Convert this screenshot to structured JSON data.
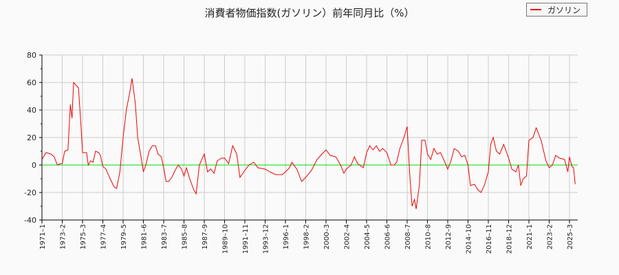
{
  "title": "消費者物価指数(ガソリン）前年同月比（%）",
  "legend": {
    "label": "ガソリン",
    "color": "#ee0000"
  },
  "colors": {
    "series": "#ee0000",
    "zero_line": "#00dd00",
    "grid": "#cccccc",
    "axis": "#000000",
    "background": "#fafafa"
  },
  "chart_data": {
    "type": "line",
    "title": "消費者物価指数(ガソリン）前年同月比（%）",
    "xlabel": "",
    "ylabel": "",
    "ylim": [
      -40,
      80
    ],
    "yticks": [
      80,
      60,
      40,
      20,
      0,
      -20,
      -40
    ],
    "grid": true,
    "legend_position": "top-right",
    "x_tick_labels": [
      "1971-1",
      "1973-2",
      "1975-3",
      "1977-4",
      "1979-5",
      "1981-6",
      "1983-7",
      "1985-8",
      "1987-9",
      "1989-10",
      "1991-11",
      "1993-12",
      "1996-1",
      "1998-2",
      "2000-3",
      "2002-4",
      "2004-5",
      "2006-6",
      "2008-7",
      "2010-8",
      "2012-9",
      "2014-10",
      "2016-11",
      "2018-12",
      "2021-1",
      "2023-2",
      "2025-3"
    ],
    "series": [
      {
        "name": "ガソリン",
        "points": [
          [
            "1971-1",
            4
          ],
          [
            "1971-6",
            9
          ],
          [
            "1971-12",
            8
          ],
          [
            "1972-4",
            6
          ],
          [
            "1972-8",
            0
          ],
          [
            "1972-12",
            1
          ],
          [
            "1973-2",
            1
          ],
          [
            "1973-5",
            10
          ],
          [
            "1973-9",
            11
          ],
          [
            "1973-12",
            44
          ],
          [
            "1974-2",
            34
          ],
          [
            "1974-4",
            60
          ],
          [
            "1974-10",
            56
          ],
          [
            "1975-1",
            30
          ],
          [
            "1975-3",
            9
          ],
          [
            "1975-8",
            9
          ],
          [
            "1975-10",
            0
          ],
          [
            "1976-1",
            3
          ],
          [
            "1976-4",
            2
          ],
          [
            "1976-7",
            10
          ],
          [
            "1976-11",
            9
          ],
          [
            "1977-1",
            7
          ],
          [
            "1977-4",
            -1
          ],
          [
            "1977-8",
            -3
          ],
          [
            "1978-1",
            -10
          ],
          [
            "1978-6",
            -16
          ],
          [
            "1978-9",
            -17
          ],
          [
            "1979-1",
            -5
          ],
          [
            "1979-5",
            20
          ],
          [
            "1979-9",
            40
          ],
          [
            "1980-1",
            52
          ],
          [
            "1980-4",
            63
          ],
          [
            "1980-8",
            45
          ],
          [
            "1980-11",
            20
          ],
          [
            "1981-3",
            6
          ],
          [
            "1981-6",
            -5
          ],
          [
            "1981-9",
            0
          ],
          [
            "1982-1",
            10
          ],
          [
            "1982-5",
            14
          ],
          [
            "1982-9",
            14
          ],
          [
            "1982-12",
            8
          ],
          [
            "1983-4",
            6
          ],
          [
            "1983-7",
            -2
          ],
          [
            "1983-10",
            -12
          ],
          [
            "1984-1",
            -12
          ],
          [
            "1984-5",
            -9
          ],
          [
            "1984-9",
            -4
          ],
          [
            "1985-1",
            0
          ],
          [
            "1985-5",
            -3
          ],
          [
            "1985-8",
            -8
          ],
          [
            "1985-11",
            -2
          ],
          [
            "1986-3",
            -10
          ],
          [
            "1986-8",
            -18
          ],
          [
            "1986-11",
            -21
          ],
          [
            "1987-3",
            0
          ],
          [
            "1987-9",
            8
          ],
          [
            "1988-1",
            -5
          ],
          [
            "1988-5",
            -3
          ],
          [
            "1988-9",
            -6
          ],
          [
            "1989-1",
            3
          ],
          [
            "1989-6",
            5
          ],
          [
            "1989-10",
            5
          ],
          [
            "1990-3",
            1
          ],
          [
            "1990-8",
            14
          ],
          [
            "1991-1",
            8
          ],
          [
            "1991-5",
            -9
          ],
          [
            "1991-11",
            -4
          ],
          [
            "1992-4",
            0
          ],
          [
            "1992-10",
            2
          ],
          [
            "1993-3",
            -2
          ],
          [
            "1993-12",
            -3
          ],
          [
            "1994-6",
            -5
          ],
          [
            "1995-1",
            -7
          ],
          [
            "1995-9",
            -7
          ],
          [
            "1996-1",
            -5
          ],
          [
            "1996-6",
            -2
          ],
          [
            "1996-9",
            2
          ],
          [
            "1997-3",
            -3
          ],
          [
            "1997-9",
            -12
          ],
          [
            "1998-2",
            -9
          ],
          [
            "1998-9",
            -4
          ],
          [
            "1999-4",
            4
          ],
          [
            "1999-10",
            8
          ],
          [
            "2000-3",
            11
          ],
          [
            "2000-8",
            7
          ],
          [
            "2001-3",
            6
          ],
          [
            "2001-9",
            0
          ],
          [
            "2002-1",
            -6
          ],
          [
            "2002-4",
            -3
          ],
          [
            "2002-10",
            0
          ],
          [
            "2003-2",
            6
          ],
          [
            "2003-6",
            1
          ],
          [
            "2004-1",
            -2
          ],
          [
            "2004-5",
            9
          ],
          [
            "2004-9",
            14
          ],
          [
            "2005-1",
            11
          ],
          [
            "2005-5",
            14
          ],
          [
            "2005-9",
            10
          ],
          [
            "2006-1",
            12
          ],
          [
            "2006-6",
            9
          ],
          [
            "2006-11",
            0
          ],
          [
            "2007-3",
            0
          ],
          [
            "2007-6",
            2
          ],
          [
            "2007-10",
            12
          ],
          [
            "2008-3",
            20
          ],
          [
            "2008-7",
            28
          ],
          [
            "2008-10",
            -5
          ],
          [
            "2009-1",
            -30
          ],
          [
            "2009-4",
            -25
          ],
          [
            "2009-6",
            -32
          ],
          [
            "2009-10",
            -15
          ],
          [
            "2010-1",
            18
          ],
          [
            "2010-5",
            18
          ],
          [
            "2010-8",
            8
          ],
          [
            "2010-12",
            4
          ],
          [
            "2011-4",
            12
          ],
          [
            "2011-8",
            8
          ],
          [
            "2011-12",
            9
          ],
          [
            "2012-4",
            4
          ],
          [
            "2012-9",
            -3
          ],
          [
            "2013-1",
            3
          ],
          [
            "2013-5",
            12
          ],
          [
            "2013-10",
            10
          ],
          [
            "2014-2",
            6
          ],
          [
            "2014-6",
            7
          ],
          [
            "2014-10",
            0
          ],
          [
            "2015-1",
            -15
          ],
          [
            "2015-6",
            -14
          ],
          [
            "2015-10",
            -18
          ],
          [
            "2016-2",
            -20
          ],
          [
            "2016-6",
            -15
          ],
          [
            "2016-11",
            -5
          ],
          [
            "2017-2",
            15
          ],
          [
            "2017-5",
            20
          ],
          [
            "2017-9",
            10
          ],
          [
            "2018-1",
            8
          ],
          [
            "2018-6",
            15
          ],
          [
            "2018-12",
            5
          ],
          [
            "2019-4",
            -3
          ],
          [
            "2019-9",
            -5
          ],
          [
            "2019-12",
            0
          ],
          [
            "2020-3",
            -15
          ],
          [
            "2020-6",
            -10
          ],
          [
            "2020-10",
            -8
          ],
          [
            "2021-1",
            18
          ],
          [
            "2021-6",
            20
          ],
          [
            "2021-10",
            27
          ],
          [
            "2022-4",
            18
          ],
          [
            "2022-10",
            3
          ],
          [
            "2023-2",
            -2
          ],
          [
            "2023-6",
            0
          ],
          [
            "2023-10",
            7
          ],
          [
            "2024-3",
            5
          ],
          [
            "2024-9",
            4
          ],
          [
            "2025-1",
            -5
          ],
          [
            "2025-3",
            6
          ],
          [
            "2025-6",
            -1
          ],
          [
            "2025-8",
            -2
          ],
          [
            "2025-10",
            -14
          ]
        ]
      }
    ]
  }
}
